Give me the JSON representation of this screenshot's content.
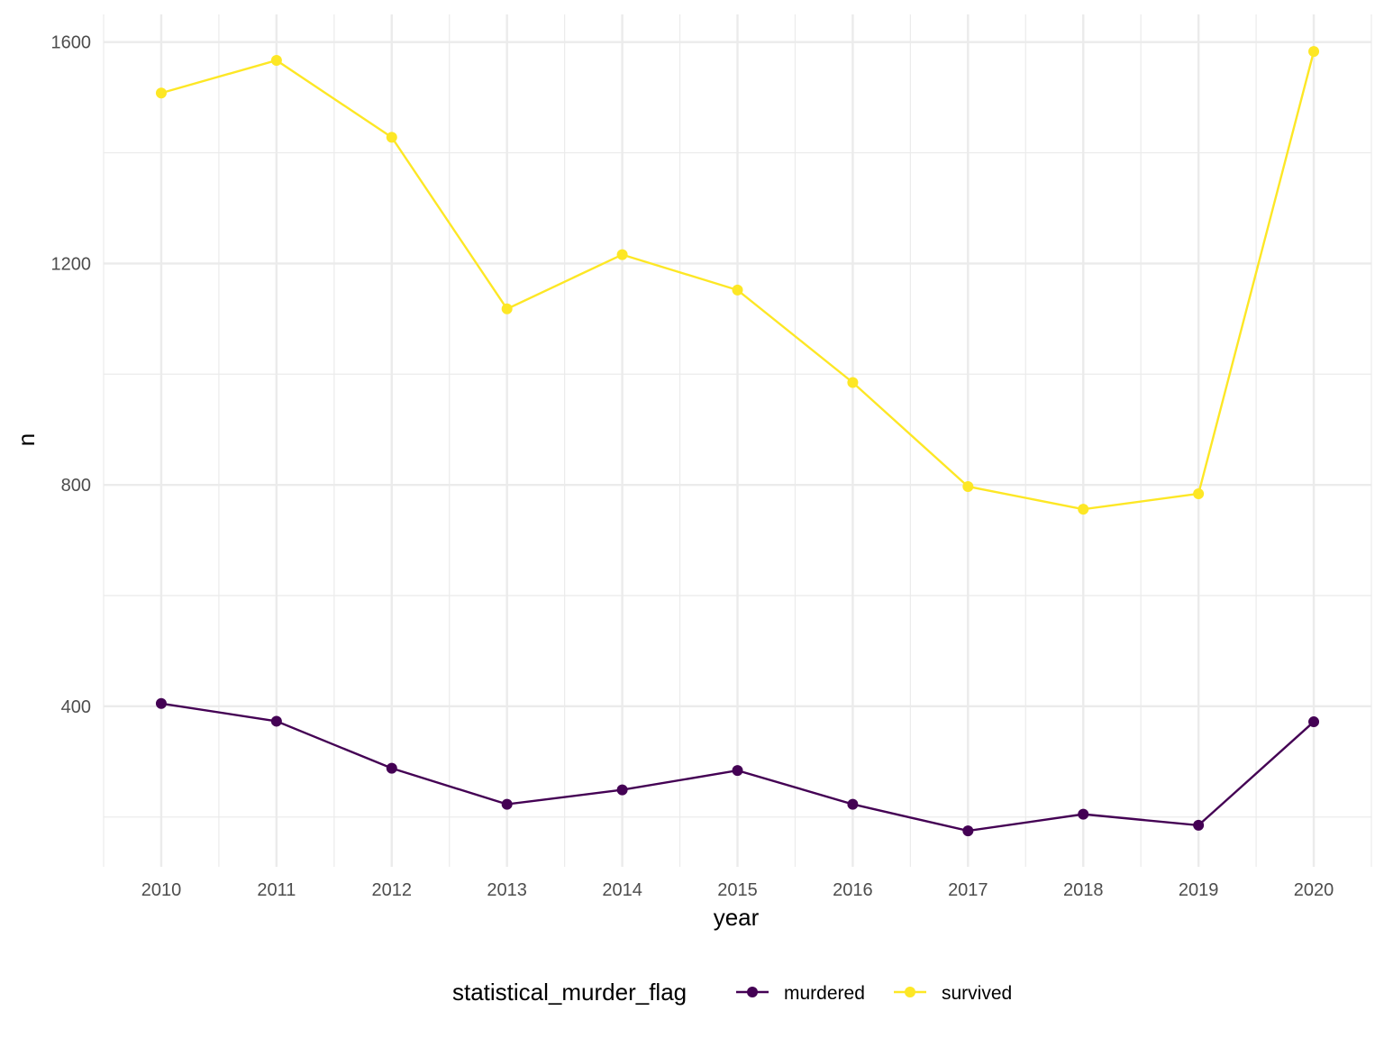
{
  "chart_data": {
    "type": "line",
    "title": "",
    "xlabel": "year",
    "ylabel": "n",
    "x": [
      2010,
      2011,
      2012,
      2013,
      2014,
      2015,
      2016,
      2017,
      2018,
      2019,
      2020
    ],
    "x_tick_labels": [
      "2010",
      "2011",
      "2012",
      "2013",
      "2014",
      "2015",
      "2016",
      "2017",
      "2018",
      "2019",
      "2020"
    ],
    "xlim": [
      2009.5,
      2020.5
    ],
    "ylim": [
      110,
      1650
    ],
    "y_ticks": [
      400,
      800,
      1200,
      1600
    ],
    "y_tick_labels": [
      "400",
      "800",
      "1200",
      "1600"
    ],
    "grid": true,
    "legend_position": "bottom",
    "legend_title": "statistical_murder_flag",
    "series": [
      {
        "name": "murdered",
        "color": "#440154",
        "values": [
          405,
          373,
          288,
          223,
          249,
          284,
          223,
          175,
          205,
          185,
          372
        ]
      },
      {
        "name": "survived",
        "color": "#FDE725",
        "values": [
          1508,
          1567,
          1428,
          1118,
          1216,
          1152,
          985,
          797,
          756,
          784,
          1583
        ]
      }
    ]
  }
}
